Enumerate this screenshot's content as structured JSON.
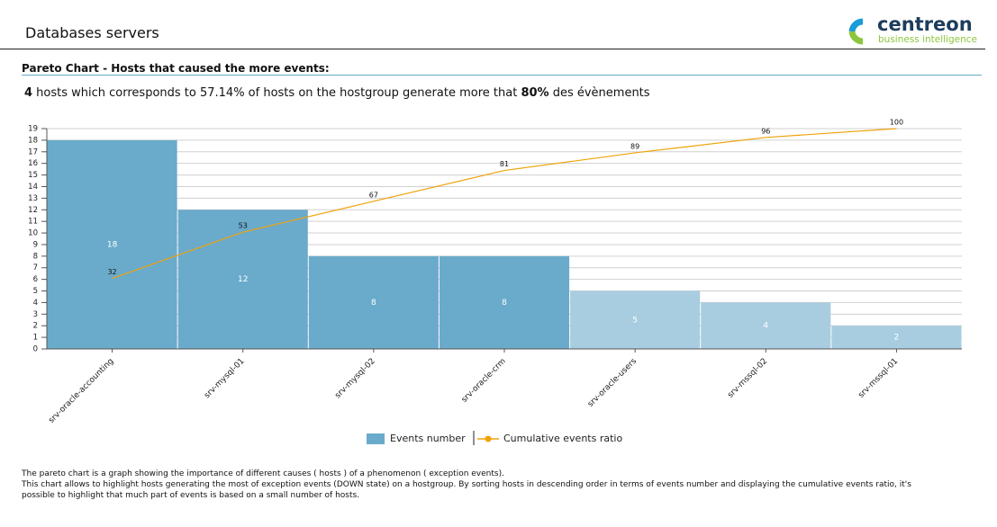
{
  "header": {
    "title": "Databases servers",
    "logo_name": "centreon",
    "logo_tagline": "business intelligence"
  },
  "section_title": "Pareto Chart - Hosts that caused the more events:",
  "summary": [
    "4",
    " hosts which corresponds to 57.14% of hosts on the hostgroup generate more that ",
    "80%",
    " des évènements"
  ],
  "chart_data": {
    "type": "pareto",
    "categories": [
      "srv-oracle-accounting",
      "srv-mysql-01",
      "srv-mysql-02",
      "srv-oracle-crm",
      "srv-oracle-users",
      "srv-mssql-02",
      "srv-mssql-01"
    ],
    "series": [
      {
        "name": "Events number",
        "color": "#6aaacb",
        "colors": [
          "#6aaacb",
          "#6aaacb",
          "#6aaacb",
          "#6aaacb",
          "#a8cde0",
          "#a8cde0",
          "#a8cde0"
        ],
        "values": [
          18,
          12,
          8,
          8,
          5,
          4,
          2
        ]
      },
      {
        "name": "Cumulative events ratio",
        "color": "#f0a30a",
        "axis": "y2",
        "values": [
          32,
          53,
          67,
          81,
          89,
          96,
          100
        ]
      }
    ],
    "ylim": [
      0,
      19
    ],
    "yticks": [
      0,
      1,
      2,
      3,
      4,
      5,
      6,
      7,
      8,
      9,
      10,
      11,
      12,
      13,
      14,
      15,
      16,
      17,
      18,
      19
    ],
    "y2lim": [
      0,
      100
    ],
    "grid": true
  },
  "description": [
    "The pareto chart is a graph showing the importance of different causes ( hosts ) of a phenomenon ( exception events).",
    "This chart allows to highlight hosts generating the most of exception events (DOWN state) on a hostgroup. By sorting hosts in descending order in terms of events number and displaying the cumulative events ratio, it's",
    "possible to highlight that much part of events is based on a small number of hosts."
  ]
}
